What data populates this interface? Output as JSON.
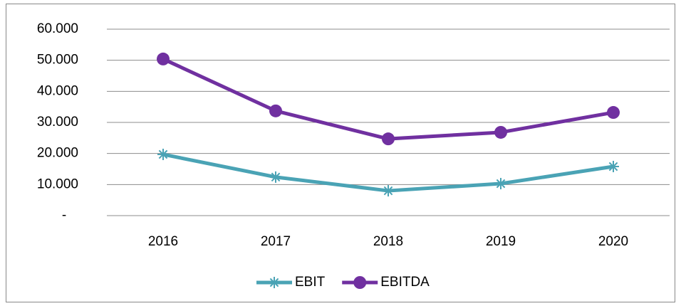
{
  "chart_data": {
    "type": "line",
    "categories": [
      "2016",
      "2017",
      "2018",
      "2019",
      "2020"
    ],
    "series": [
      {
        "name": "EBIT",
        "color": "#4aa3b5",
        "marker": "asterisk",
        "values": [
          19700,
          12400,
          8000,
          10300,
          15800
        ]
      },
      {
        "name": "EBITDA",
        "color": "#7030a0",
        "marker": "circle",
        "values": [
          50400,
          33700,
          24700,
          26800,
          33200
        ]
      }
    ],
    "ylim": [
      0,
      60000
    ],
    "yticks": [
      {
        "value": 0,
        "label": "-"
      },
      {
        "value": 10000,
        "label": "10.000"
      },
      {
        "value": 20000,
        "label": "20.000"
      },
      {
        "value": 30000,
        "label": "30.000"
      },
      {
        "value": 40000,
        "label": "40.000"
      },
      {
        "value": 50000,
        "label": "50.000"
      },
      {
        "value": 60000,
        "label": "60.000"
      }
    ],
    "grid": true,
    "legend": "bottom"
  }
}
